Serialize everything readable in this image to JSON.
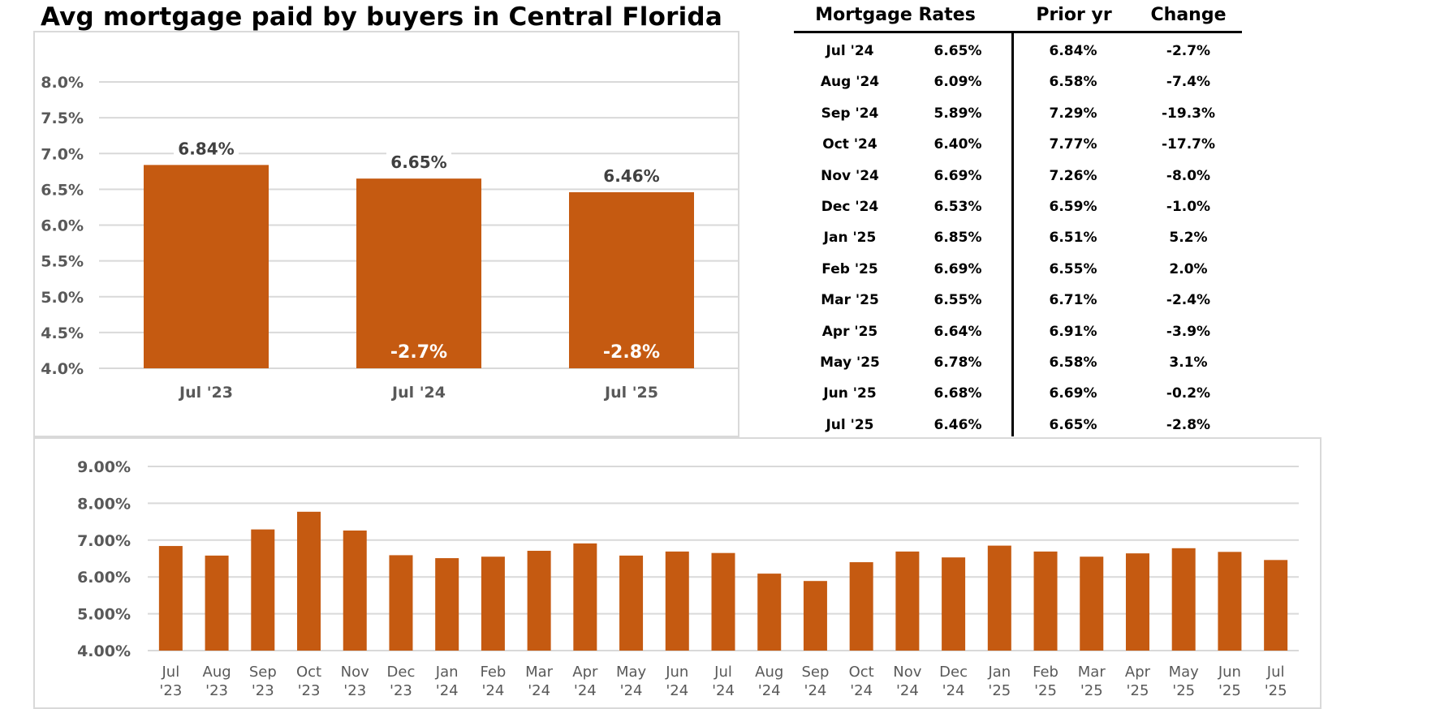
{
  "title": "Avg mortgage paid by buyers in Central Florida",
  "colors": {
    "bar": "#c55a11",
    "grid": "#d9d9d9",
    "axis_text": "#595959",
    "data_label": "#404040"
  },
  "chart_data": [
    {
      "type": "bar",
      "title": "Avg mortgage paid by buyers in Central Florida",
      "categories": [
        "Jul '23",
        "Jul '24",
        "Jul '25"
      ],
      "values": [
        6.84,
        6.65,
        6.46
      ],
      "data_labels": [
        "6.84%",
        "6.65%",
        "6.46%"
      ],
      "inner_labels": [
        "",
        "-2.7%",
        "-2.8%"
      ],
      "ylim": [
        4.0,
        8.0
      ],
      "yticks": [
        4.0,
        4.5,
        5.0,
        5.5,
        6.0,
        6.5,
        7.0,
        7.5,
        8.0
      ],
      "ytick_labels": [
        "4.0%",
        "4.5%",
        "5.0%",
        "5.5%",
        "6.0%",
        "6.5%",
        "7.0%",
        "7.5%",
        "8.0%"
      ],
      "xlabel": "",
      "ylabel": "",
      "grid": true,
      "legend": "none"
    },
    {
      "type": "bar",
      "title": "",
      "categories": [
        "Jul '23",
        "Aug '23",
        "Sep '23",
        "Oct '23",
        "Nov '23",
        "Dec '23",
        "Jan '24",
        "Feb '24",
        "Mar '24",
        "Apr '24",
        "May '24",
        "Jun '24",
        "Jul '24",
        "Aug '24",
        "Sep '24",
        "Oct '24",
        "Nov '24",
        "Dec '24",
        "Jan '25",
        "Feb '25",
        "Mar '25",
        "Apr '25",
        "May '25",
        "Jun '25",
        "Jul '25"
      ],
      "category_lines": [
        [
          "Jul",
          "'23"
        ],
        [
          "Aug",
          "'23"
        ],
        [
          "Sep",
          "'23"
        ],
        [
          "Oct",
          "'23"
        ],
        [
          "Nov",
          "'23"
        ],
        [
          "Dec",
          "'23"
        ],
        [
          "Jan",
          "'24"
        ],
        [
          "Feb",
          "'24"
        ],
        [
          "Mar",
          "'24"
        ],
        [
          "Apr",
          "'24"
        ],
        [
          "May",
          "'24"
        ],
        [
          "Jun",
          "'24"
        ],
        [
          "Jul",
          "'24"
        ],
        [
          "Aug",
          "'24"
        ],
        [
          "Sep",
          "'24"
        ],
        [
          "Oct",
          "'24"
        ],
        [
          "Nov",
          "'24"
        ],
        [
          "Dec",
          "'24"
        ],
        [
          "Jan",
          "'25"
        ],
        [
          "Feb",
          "'25"
        ],
        [
          "Mar",
          "'25"
        ],
        [
          "Apr",
          "'25"
        ],
        [
          "May",
          "'25"
        ],
        [
          "Jun",
          "'25"
        ],
        [
          "Jul",
          "'25"
        ]
      ],
      "values": [
        6.84,
        6.58,
        7.29,
        7.77,
        7.26,
        6.59,
        6.51,
        6.55,
        6.71,
        6.91,
        6.58,
        6.69,
        6.65,
        6.09,
        5.89,
        6.4,
        6.69,
        6.53,
        6.85,
        6.69,
        6.55,
        6.64,
        6.78,
        6.68,
        6.46
      ],
      "ylim": [
        4.0,
        9.0
      ],
      "yticks": [
        4,
        5,
        6,
        7,
        8,
        9
      ],
      "ytick_labels": [
        "4.00%",
        "5.00%",
        "6.00%",
        "7.00%",
        "8.00%",
        "9.00%"
      ],
      "xlabel": "",
      "ylabel": "",
      "grid": true,
      "legend": "none"
    },
    {
      "type": "table",
      "columns": [
        "Mortgage Rates",
        "",
        "Prior yr",
        "Change"
      ],
      "rows": [
        [
          "Jul '24",
          "6.65%",
          "6.84%",
          "-2.7%"
        ],
        [
          "Aug '24",
          "6.09%",
          "6.58%",
          "-7.4%"
        ],
        [
          "Sep '24",
          "5.89%",
          "7.29%",
          "-19.3%"
        ],
        [
          "Oct '24",
          "6.40%",
          "7.77%",
          "-17.7%"
        ],
        [
          "Nov '24",
          "6.69%",
          "7.26%",
          "-8.0%"
        ],
        [
          "Dec '24",
          "6.53%",
          "6.59%",
          "-1.0%"
        ],
        [
          "Jan '25",
          "6.85%",
          "6.51%",
          "5.2%"
        ],
        [
          "Feb '25",
          "6.69%",
          "6.55%",
          "2.0%"
        ],
        [
          "Mar '25",
          "6.55%",
          "6.71%",
          "-2.4%"
        ],
        [
          "Apr '25",
          "6.64%",
          "6.91%",
          "-3.9%"
        ],
        [
          "May '25",
          "6.78%",
          "6.58%",
          "3.1%"
        ],
        [
          "Jun '25",
          "6.68%",
          "6.69%",
          "-0.2%"
        ],
        [
          "Jul '25",
          "6.46%",
          "6.65%",
          "-2.8%"
        ]
      ]
    }
  ],
  "table": {
    "headers": {
      "rates": "Mortgage Rates",
      "prior": "Prior yr",
      "change": "Change"
    }
  }
}
